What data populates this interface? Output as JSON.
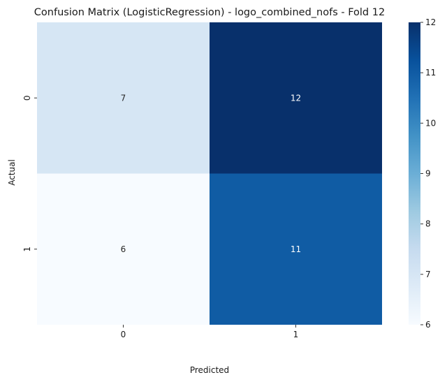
{
  "chart_data": {
    "type": "heatmap",
    "title": "Confusion Matrix (LogisticRegression) - logo_combined_nofs - Fold 12",
    "xlabel": "Predicted",
    "ylabel": "Actual",
    "x_categories": [
      "0",
      "1"
    ],
    "y_categories": [
      "0",
      "1"
    ],
    "values": [
      [
        7,
        12
      ],
      [
        6,
        11
      ]
    ],
    "cell_labels": [
      [
        "7",
        "12"
      ],
      [
        "6",
        "11"
      ]
    ],
    "colormap": "Blues",
    "colorbar": {
      "min": 6,
      "max": 12,
      "ticks": [
        6,
        7,
        8,
        9,
        10,
        11,
        12
      ],
      "tick_labels": [
        "6",
        "7",
        "8",
        "9",
        "10",
        "11",
        "12"
      ]
    },
    "grid": false,
    "legend": "colorbar-right"
  }
}
